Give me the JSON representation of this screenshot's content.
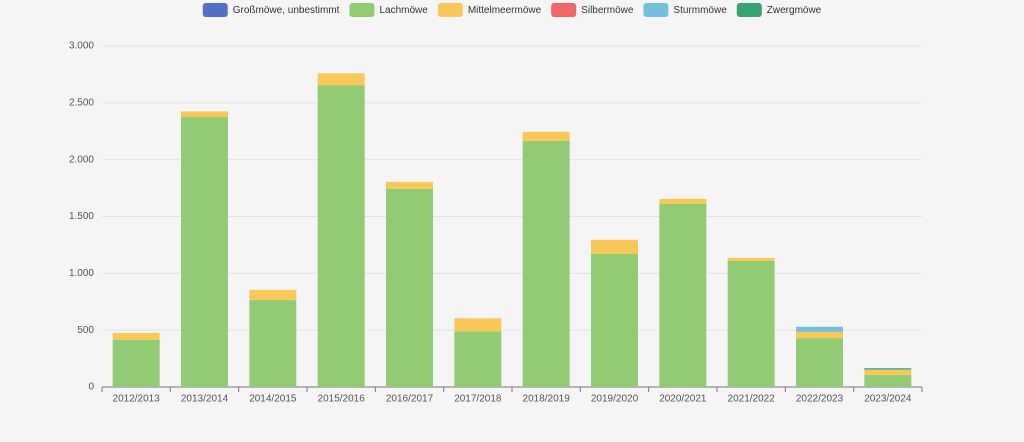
{
  "chart_data": {
    "type": "bar",
    "stacked": true,
    "categories": [
      "2012/2013",
      "2013/2014",
      "2014/2015",
      "2015/2016",
      "2016/2017",
      "2017/2018",
      "2018/2019",
      "2019/2020",
      "2020/2021",
      "2021/2022",
      "2022/2023",
      "2023/2024"
    ],
    "series": [
      {
        "name": "Großmöwe, unbestimmt",
        "color": "#5470c6",
        "values": [
          0,
          0,
          0,
          0,
          0,
          0,
          0,
          0,
          0,
          0,
          0,
          0
        ]
      },
      {
        "name": "Lachmöwe",
        "color": "#91cc75",
        "values": [
          415,
          2375,
          765,
          2655,
          1745,
          490,
          2165,
          1170,
          1610,
          1110,
          430,
          105
        ]
      },
      {
        "name": "Mittelmeermöwe",
        "color": "#fac858",
        "values": [
          60,
          50,
          90,
          105,
          60,
          115,
          80,
          125,
          45,
          25,
          55,
          45
        ]
      },
      {
        "name": "Silbermöwe",
        "color": "#ee6666",
        "values": [
          0,
          0,
          0,
          0,
          0,
          0,
          0,
          0,
          0,
          0,
          0,
          0
        ]
      },
      {
        "name": "Sturmmöwe",
        "color": "#73c0de",
        "values": [
          0,
          0,
          0,
          0,
          0,
          0,
          0,
          0,
          0,
          0,
          45,
          5
        ]
      },
      {
        "name": "Zwergmöwe",
        "color": "#3ba272",
        "values": [
          0,
          0,
          0,
          0,
          0,
          0,
          0,
          0,
          0,
          0,
          0,
          10
        ]
      }
    ],
    "ylim": [
      0,
      3000
    ],
    "yticks": [
      0,
      500,
      {
        "value": 1000,
        "label": "1.000"
      },
      {
        "value": 1500,
        "label": "1.500"
      },
      {
        "value": 2000,
        "label": "2.000"
      },
      {
        "value": 2500,
        "label": "2.500"
      },
      {
        "value": 3000,
        "label": "3.000"
      }
    ],
    "grid": true,
    "legend": "top"
  }
}
